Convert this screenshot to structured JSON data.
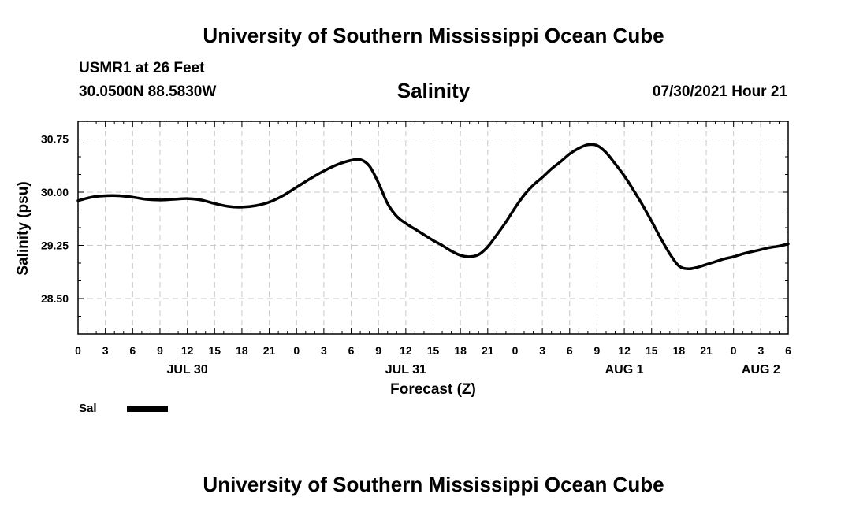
{
  "header": {
    "title": "University of Southern Mississippi Ocean Cube",
    "station": "USMR1 at 26 Feet",
    "coordinates": "30.0500N  88.5830W",
    "variable": "Salinity",
    "datetime": "07/30/2021 Hour 21"
  },
  "footer": {
    "title": "University of Southern Mississippi Ocean Cube"
  },
  "legend": {
    "label": "Sal"
  },
  "chart_data": {
    "type": "line",
    "title": "Salinity",
    "xlabel": "Forecast (Z)",
    "ylabel": "Salinity (psu)",
    "x_unit": "hours from JUL 30 00Z",
    "xlim": [
      0,
      78
    ],
    "ylim": [
      28.0,
      31.0
    ],
    "grid": true,
    "x_ticks": [
      0,
      3,
      6,
      9,
      12,
      15,
      18,
      21,
      24,
      27,
      30,
      33,
      36,
      39,
      42,
      45,
      48,
      51,
      54,
      57,
      60,
      63,
      66,
      69,
      72,
      75,
      78
    ],
    "x_tick_labels": [
      "0",
      "3",
      "6",
      "9",
      "12",
      "15",
      "18",
      "21",
      "0",
      "3",
      "6",
      "9",
      "12",
      "15",
      "18",
      "21",
      "0",
      "3",
      "6",
      "9",
      "12",
      "15",
      "18",
      "21",
      "0",
      "3",
      "6"
    ],
    "y_ticks": [
      28.5,
      29.25,
      30.0,
      30.75
    ],
    "y_tick_labels": [
      "28.50",
      "29.25",
      "30.00",
      "30.75"
    ],
    "day_labels": [
      {
        "x": 12,
        "label": "JUL 30"
      },
      {
        "x": 36,
        "label": "JUL 31"
      },
      {
        "x": 60,
        "label": "AUG 1"
      },
      {
        "x": 75,
        "label": "AUG 2"
      }
    ],
    "series": [
      {
        "name": "Sal",
        "color": "#000000",
        "x": [
          0,
          1.5,
          3,
          4.5,
          6,
          7.5,
          9,
          10.5,
          12,
          13.5,
          15,
          16.5,
          18,
          19.5,
          21,
          22.5,
          24,
          25.5,
          27,
          28.5,
          30,
          31,
          32,
          33,
          34,
          35,
          36,
          37,
          38,
          39,
          40,
          41,
          42,
          43,
          44,
          45,
          46,
          47,
          48,
          49,
          50,
          51,
          52,
          53,
          54,
          55,
          56,
          57,
          58,
          59,
          60,
          61,
          62,
          63,
          64,
          65,
          66,
          67,
          68,
          69,
          70,
          71,
          72,
          73,
          74,
          75,
          76,
          77,
          78
        ],
        "values": [
          29.88,
          29.93,
          29.95,
          29.95,
          29.93,
          29.9,
          29.89,
          29.9,
          29.91,
          29.89,
          29.84,
          29.8,
          29.79,
          29.81,
          29.86,
          29.95,
          30.07,
          30.19,
          30.3,
          30.39,
          30.45,
          30.46,
          30.37,
          30.13,
          29.84,
          29.66,
          29.56,
          29.48,
          29.4,
          29.32,
          29.25,
          29.17,
          29.11,
          29.09,
          29.12,
          29.23,
          29.4,
          29.58,
          29.78,
          29.96,
          30.1,
          30.21,
          30.33,
          30.43,
          30.54,
          30.62,
          30.67,
          30.66,
          30.56,
          30.4,
          30.23,
          30.03,
          29.82,
          29.59,
          29.35,
          29.13,
          28.96,
          28.92,
          28.94,
          28.98,
          29.02,
          29.06,
          29.09,
          29.13,
          29.16,
          29.19,
          29.22,
          29.24,
          29.27
        ]
      }
    ]
  }
}
